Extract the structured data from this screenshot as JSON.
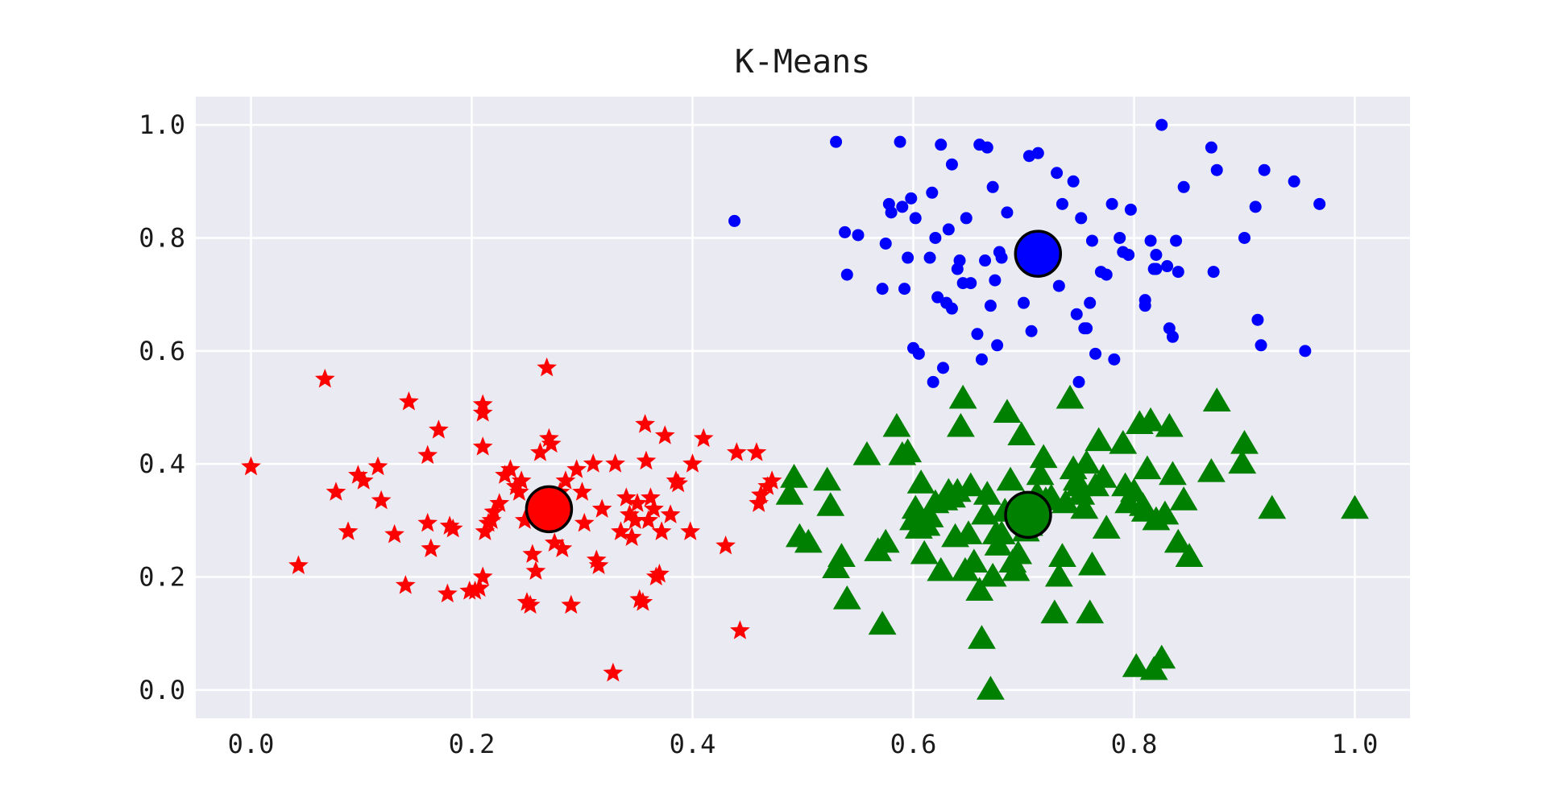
{
  "chart_data": {
    "type": "scatter",
    "title": "K-Means",
    "xlabel": "",
    "ylabel": "",
    "xlim": [
      -0.05,
      1.05
    ],
    "ylim": [
      -0.05,
      1.05
    ],
    "x_ticks": [
      "0.0",
      "0.2",
      "0.4",
      "0.6",
      "0.8",
      "1.0"
    ],
    "y_ticks": [
      "0.0",
      "0.2",
      "0.4",
      "0.6",
      "0.8",
      "1.0"
    ],
    "x_tick_values": [
      0.0,
      0.2,
      0.4,
      0.6,
      0.8,
      1.0
    ],
    "y_tick_values": [
      0.0,
      0.2,
      0.4,
      0.6,
      0.8,
      1.0
    ],
    "grid": true,
    "background_color": "#eaeaf2",
    "series": [
      {
        "color": "#ff0000",
        "marker": "star",
        "points": [
          [
            0.0,
            0.395
          ],
          [
            0.043,
            0.22
          ],
          [
            0.067,
            0.55
          ],
          [
            0.077,
            0.35
          ],
          [
            0.088,
            0.28
          ],
          [
            0.097,
            0.38
          ],
          [
            0.102,
            0.37
          ],
          [
            0.115,
            0.395
          ],
          [
            0.118,
            0.335
          ],
          [
            0.13,
            0.275
          ],
          [
            0.14,
            0.185
          ],
          [
            0.143,
            0.51
          ],
          [
            0.16,
            0.415
          ],
          [
            0.16,
            0.295
          ],
          [
            0.163,
            0.25
          ],
          [
            0.17,
            0.46
          ],
          [
            0.178,
            0.17
          ],
          [
            0.18,
            0.29
          ],
          [
            0.183,
            0.285
          ],
          [
            0.198,
            0.175
          ],
          [
            0.203,
            0.175
          ],
          [
            0.207,
            0.18
          ],
          [
            0.21,
            0.43
          ],
          [
            0.21,
            0.49
          ],
          [
            0.21,
            0.505
          ],
          [
            0.21,
            0.2
          ],
          [
            0.212,
            0.28
          ],
          [
            0.215,
            0.295
          ],
          [
            0.218,
            0.3
          ],
          [
            0.22,
            0.315
          ],
          [
            0.225,
            0.33
          ],
          [
            0.23,
            0.38
          ],
          [
            0.235,
            0.39
          ],
          [
            0.24,
            0.36
          ],
          [
            0.243,
            0.35
          ],
          [
            0.245,
            0.37
          ],
          [
            0.248,
            0.3
          ],
          [
            0.25,
            0.155
          ],
          [
            0.253,
            0.15
          ],
          [
            0.255,
            0.24
          ],
          [
            0.258,
            0.21
          ],
          [
            0.262,
            0.42
          ],
          [
            0.265,
            0.31
          ],
          [
            0.268,
            0.57
          ],
          [
            0.27,
            0.445
          ],
          [
            0.272,
            0.435
          ],
          [
            0.275,
            0.26
          ],
          [
            0.28,
            0.35
          ],
          [
            0.282,
            0.25
          ],
          [
            0.285,
            0.37
          ],
          [
            0.29,
            0.15
          ],
          [
            0.295,
            0.39
          ],
          [
            0.3,
            0.35
          ],
          [
            0.302,
            0.295
          ],
          [
            0.31,
            0.4
          ],
          [
            0.313,
            0.23
          ],
          [
            0.315,
            0.22
          ],
          [
            0.318,
            0.32
          ],
          [
            0.328,
            0.03
          ],
          [
            0.33,
            0.4
          ],
          [
            0.335,
            0.28
          ],
          [
            0.34,
            0.34
          ],
          [
            0.343,
            0.31
          ],
          [
            0.345,
            0.27
          ],
          [
            0.348,
            0.3
          ],
          [
            0.35,
            0.33
          ],
          [
            0.352,
            0.16
          ],
          [
            0.355,
            0.155
          ],
          [
            0.357,
            0.47
          ],
          [
            0.358,
            0.405
          ],
          [
            0.36,
            0.3
          ],
          [
            0.362,
            0.34
          ],
          [
            0.365,
            0.32
          ],
          [
            0.367,
            0.2
          ],
          [
            0.37,
            0.205
          ],
          [
            0.372,
            0.28
          ],
          [
            0.375,
            0.45
          ],
          [
            0.38,
            0.31
          ],
          [
            0.385,
            0.37
          ],
          [
            0.387,
            0.365
          ],
          [
            0.398,
            0.28
          ],
          [
            0.4,
            0.4
          ],
          [
            0.41,
            0.445
          ],
          [
            0.43,
            0.255
          ],
          [
            0.44,
            0.42
          ],
          [
            0.443,
            0.105
          ],
          [
            0.458,
            0.42
          ],
          [
            0.46,
            0.33
          ],
          [
            0.462,
            0.345
          ],
          [
            0.468,
            0.36
          ],
          [
            0.472,
            0.37
          ]
        ]
      },
      {
        "color": "#0000ff",
        "marker": "circle",
        "points": [
          [
            0.438,
            0.83
          ],
          [
            0.53,
            0.97
          ],
          [
            0.538,
            0.81
          ],
          [
            0.54,
            0.735
          ],
          [
            0.55,
            0.805
          ],
          [
            0.572,
            0.71
          ],
          [
            0.575,
            0.79
          ],
          [
            0.578,
            0.86
          ],
          [
            0.58,
            0.845
          ],
          [
            0.588,
            0.97
          ],
          [
            0.59,
            0.855
          ],
          [
            0.592,
            0.71
          ],
          [
            0.595,
            0.765
          ],
          [
            0.598,
            0.87
          ],
          [
            0.6,
            0.605
          ],
          [
            0.602,
            0.835
          ],
          [
            0.605,
            0.595
          ],
          [
            0.615,
            0.765
          ],
          [
            0.617,
            0.88
          ],
          [
            0.618,
            0.545
          ],
          [
            0.62,
            0.8
          ],
          [
            0.622,
            0.695
          ],
          [
            0.625,
            0.965
          ],
          [
            0.627,
            0.57
          ],
          [
            0.63,
            0.685
          ],
          [
            0.632,
            0.815
          ],
          [
            0.635,
            0.93
          ],
          [
            0.635,
            0.675
          ],
          [
            0.64,
            0.745
          ],
          [
            0.642,
            0.76
          ],
          [
            0.645,
            0.72
          ],
          [
            0.648,
            0.835
          ],
          [
            0.652,
            0.72
          ],
          [
            0.658,
            0.63
          ],
          [
            0.66,
            0.965
          ],
          [
            0.662,
            0.585
          ],
          [
            0.665,
            0.76
          ],
          [
            0.667,
            0.96
          ],
          [
            0.67,
            0.68
          ],
          [
            0.672,
            0.89
          ],
          [
            0.674,
            0.725
          ],
          [
            0.676,
            0.61
          ],
          [
            0.678,
            0.775
          ],
          [
            0.68,
            0.765
          ],
          [
            0.685,
            0.845
          ],
          [
            0.7,
            0.685
          ],
          [
            0.705,
            0.945
          ],
          [
            0.707,
            0.635
          ],
          [
            0.713,
            0.95
          ],
          [
            0.73,
            0.915
          ],
          [
            0.732,
            0.715
          ],
          [
            0.735,
            0.86
          ],
          [
            0.745,
            0.9
          ],
          [
            0.748,
            0.665
          ],
          [
            0.75,
            0.545
          ],
          [
            0.752,
            0.835
          ],
          [
            0.755,
            0.64
          ],
          [
            0.757,
            0.64
          ],
          [
            0.76,
            0.685
          ],
          [
            0.762,
            0.795
          ],
          [
            0.765,
            0.595
          ],
          [
            0.77,
            0.74
          ],
          [
            0.775,
            0.735
          ],
          [
            0.78,
            0.86
          ],
          [
            0.782,
            0.585
          ],
          [
            0.787,
            0.8
          ],
          [
            0.79,
            0.775
          ],
          [
            0.795,
            0.77
          ],
          [
            0.797,
            0.85
          ],
          [
            0.81,
            0.69
          ],
          [
            0.81,
            0.68
          ],
          [
            0.815,
            0.795
          ],
          [
            0.818,
            0.745
          ],
          [
            0.82,
            0.745
          ],
          [
            0.82,
            0.77
          ],
          [
            0.825,
            1.0
          ],
          [
            0.83,
            0.75
          ],
          [
            0.832,
            0.64
          ],
          [
            0.835,
            0.625
          ],
          [
            0.838,
            0.795
          ],
          [
            0.84,
            0.74
          ],
          [
            0.845,
            0.89
          ],
          [
            0.87,
            0.96
          ],
          [
            0.872,
            0.74
          ],
          [
            0.875,
            0.92
          ],
          [
            0.9,
            0.8
          ],
          [
            0.91,
            0.855
          ],
          [
            0.912,
            0.655
          ],
          [
            0.915,
            0.61
          ],
          [
            0.918,
            0.92
          ],
          [
            0.945,
            0.9
          ],
          [
            0.955,
            0.6
          ],
          [
            0.968,
            0.86
          ]
        ]
      },
      {
        "color": "#008000",
        "marker": "triangle",
        "points": [
          [
            0.488,
            0.345
          ],
          [
            0.492,
            0.375
          ],
          [
            0.497,
            0.27
          ],
          [
            0.505,
            0.26
          ],
          [
            0.522,
            0.37
          ],
          [
            0.525,
            0.325
          ],
          [
            0.53,
            0.215
          ],
          [
            0.535,
            0.235
          ],
          [
            0.54,
            0.16
          ],
          [
            0.558,
            0.415
          ],
          [
            0.568,
            0.245
          ],
          [
            0.572,
            0.115
          ],
          [
            0.575,
            0.26
          ],
          [
            0.585,
            0.465
          ],
          [
            0.59,
            0.415
          ],
          [
            0.595,
            0.42
          ],
          [
            0.6,
            0.3
          ],
          [
            0.602,
            0.32
          ],
          [
            0.605,
            0.285
          ],
          [
            0.607,
            0.365
          ],
          [
            0.61,
            0.24
          ],
          [
            0.612,
            0.29
          ],
          [
            0.615,
            0.305
          ],
          [
            0.62,
            0.33
          ],
          [
            0.625,
            0.21
          ],
          [
            0.628,
            0.335
          ],
          [
            0.632,
            0.35
          ],
          [
            0.635,
            0.34
          ],
          [
            0.638,
            0.27
          ],
          [
            0.64,
            0.35
          ],
          [
            0.643,
            0.465
          ],
          [
            0.645,
            0.515
          ],
          [
            0.647,
            0.21
          ],
          [
            0.65,
            0.275
          ],
          [
            0.652,
            0.36
          ],
          [
            0.655,
            0.225
          ],
          [
            0.66,
            0.175
          ],
          [
            0.662,
            0.09
          ],
          [
            0.665,
            0.31
          ],
          [
            0.667,
            0.345
          ],
          [
            0.67,
            0.0
          ],
          [
            0.672,
            0.2
          ],
          [
            0.675,
            0.275
          ],
          [
            0.677,
            0.255
          ],
          [
            0.68,
            0.275
          ],
          [
            0.683,
            0.315
          ],
          [
            0.685,
            0.49
          ],
          [
            0.688,
            0.37
          ],
          [
            0.69,
            0.225
          ],
          [
            0.693,
            0.21
          ],
          [
            0.695,
            0.24
          ],
          [
            0.698,
            0.45
          ],
          [
            0.7,
            0.33
          ],
          [
            0.702,
            0.28
          ],
          [
            0.705,
            0.29
          ],
          [
            0.71,
            0.31
          ],
          [
            0.712,
            0.345
          ],
          [
            0.715,
            0.38
          ],
          [
            0.718,
            0.41
          ],
          [
            0.72,
            0.335
          ],
          [
            0.725,
            0.34
          ],
          [
            0.728,
            0.135
          ],
          [
            0.732,
            0.2
          ],
          [
            0.735,
            0.235
          ],
          [
            0.738,
            0.33
          ],
          [
            0.742,
            0.515
          ],
          [
            0.745,
            0.39
          ],
          [
            0.748,
            0.37
          ],
          [
            0.75,
            0.36
          ],
          [
            0.752,
            0.345
          ],
          [
            0.755,
            0.32
          ],
          [
            0.757,
            0.4
          ],
          [
            0.76,
            0.135
          ],
          [
            0.762,
            0.22
          ],
          [
            0.765,
            0.36
          ],
          [
            0.768,
            0.44
          ],
          [
            0.772,
            0.375
          ],
          [
            0.775,
            0.285
          ],
          [
            0.79,
            0.435
          ],
          [
            0.792,
            0.36
          ],
          [
            0.795,
            0.33
          ],
          [
            0.8,
            0.35
          ],
          [
            0.802,
            0.04
          ],
          [
            0.805,
            0.47
          ],
          [
            0.808,
            0.325
          ],
          [
            0.81,
            0.315
          ],
          [
            0.812,
            0.39
          ],
          [
            0.815,
            0.475
          ],
          [
            0.818,
            0.035
          ],
          [
            0.82,
            0.3
          ],
          [
            0.825,
            0.055
          ],
          [
            0.828,
            0.31
          ],
          [
            0.832,
            0.465
          ],
          [
            0.835,
            0.38
          ],
          [
            0.84,
            0.26
          ],
          [
            0.845,
            0.335
          ],
          [
            0.85,
            0.235
          ],
          [
            0.87,
            0.385
          ],
          [
            0.875,
            0.51
          ],
          [
            0.898,
            0.4
          ],
          [
            0.9,
            0.435
          ],
          [
            0.925,
            0.32
          ],
          [
            1.0,
            0.32
          ]
        ]
      }
    ],
    "centroids": [
      {
        "x": 0.27,
        "y": 0.32,
        "color": "#ff0000"
      },
      {
        "x": 0.713,
        "y": 0.772,
        "color": "#0000ff"
      },
      {
        "x": 0.704,
        "y": 0.31,
        "color": "#008000"
      }
    ]
  }
}
